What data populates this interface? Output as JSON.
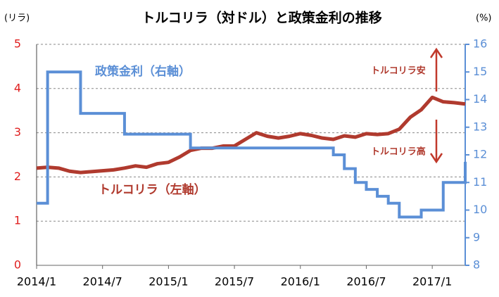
{
  "chart_data": {
    "type": "line",
    "title": "トルコリラ（対ドル）と政策金利の推移",
    "y_unit": "(リラ)",
    "y2_unit": "(%)",
    "categories": [
      "2014/1",
      null,
      null,
      null,
      null,
      null,
      "2014/7",
      null,
      null,
      null,
      null,
      null,
      "2015/1",
      null,
      null,
      null,
      null,
      null,
      "2015/7",
      null,
      null,
      null,
      null,
      null,
      "2016/1",
      null,
      null,
      null,
      null,
      null,
      "2016/7",
      null,
      null,
      null,
      null,
      null,
      "2017/1",
      null,
      null,
      null
    ],
    "series": [
      {
        "name": "トルコリラ（左軸）",
        "color": "#b03a2e",
        "axis": "y",
        "values": [
          2.2,
          2.22,
          2.2,
          2.13,
          2.1,
          2.12,
          2.14,
          2.16,
          2.2,
          2.25,
          2.22,
          2.3,
          2.33,
          2.45,
          2.6,
          2.65,
          2.65,
          2.7,
          2.7,
          2.85,
          3.0,
          2.92,
          2.88,
          2.92,
          2.98,
          2.94,
          2.88,
          2.85,
          2.93,
          2.9,
          2.98,
          2.96,
          2.98,
          3.08,
          3.35,
          3.52,
          3.8,
          3.7,
          3.68,
          3.65
        ]
      },
      {
        "name": "政策金利（右軸）",
        "color": "#5b8fd6",
        "axis": "y2",
        "step": true,
        "values": [
          10.25,
          15,
          15,
          15,
          13.5,
          13.5,
          13.5,
          13.5,
          12.75,
          12.75,
          12.75,
          12.75,
          12.75,
          12.75,
          12.25,
          12.25,
          12.25,
          12.25,
          12.25,
          12.25,
          12.25,
          12.25,
          12.25,
          12.25,
          12.25,
          12.25,
          12.25,
          12.0,
          11.5,
          11.0,
          10.75,
          10.5,
          10.25,
          9.75,
          9.75,
          10.0,
          10.0,
          11.0,
          11.0,
          11.75
        ]
      }
    ],
    "ylim": [
      0,
      5
    ],
    "yticks": [
      0,
      1,
      2,
      3,
      4,
      5
    ],
    "y2lim": [
      8,
      16
    ],
    "y2ticks": [
      8,
      9,
      10,
      11,
      12,
      13,
      14,
      15,
      16
    ],
    "grid": true,
    "annotations": [
      "トルコリラ安",
      "トルコリラ高"
    ]
  }
}
